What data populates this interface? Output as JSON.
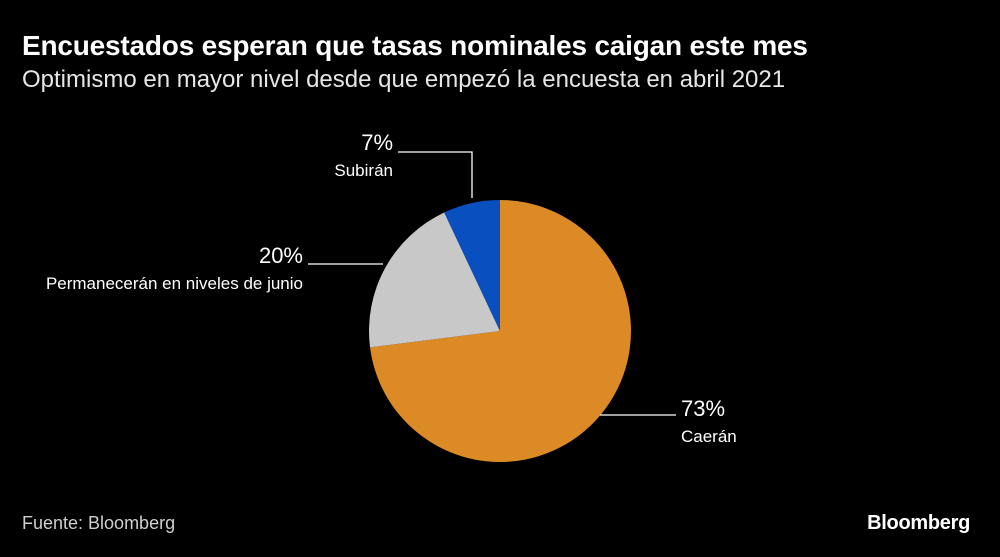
{
  "header": {
    "title": "Encuestados esperan que tasas nominales caigan este mes",
    "subtitle": "Optimismo en mayor nivel desde que empezó la encuesta en abril 2021"
  },
  "footer": {
    "source": "Fuente: Bloomberg",
    "brand": "Bloomberg"
  },
  "chart_data": {
    "type": "pie",
    "title": "Encuestados esperan que tasas nominales caigan este mes",
    "subtitle": "Optimismo en mayor nivel desde que empezó la encuesta en abril 2021",
    "slices": [
      {
        "label": "Caerán",
        "value": 73,
        "value_label": "73%",
        "color": "#dc8a26"
      },
      {
        "label": "Permanecerán en niveles de junio",
        "value": 20,
        "value_label": "20%",
        "color": "#c8c8c8"
      },
      {
        "label": "Subirán",
        "value": 7,
        "value_label": "7%",
        "color": "#0a4fc0"
      }
    ],
    "start": "12 o'clock",
    "direction": "clockwise"
  }
}
